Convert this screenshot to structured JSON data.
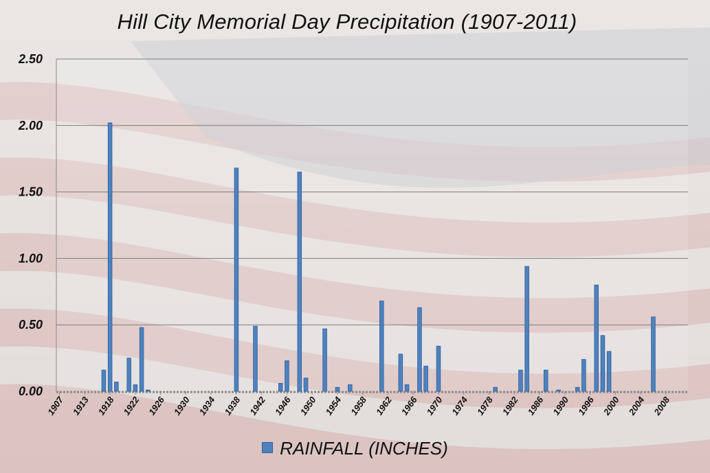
{
  "chart_data": {
    "type": "bar",
    "title": "Hill City Memorial Day Precipitation (1907-2011)",
    "xlabel": "",
    "ylabel": "",
    "ylim": [
      0,
      2.5
    ],
    "yticks": [
      "0.00",
      "0.50",
      "1.00",
      "1.50",
      "2.00",
      "2.50"
    ],
    "xtick_labels": [
      "1907",
      "1913",
      "1918",
      "1922",
      "1926",
      "1930",
      "1934",
      "1938",
      "1942",
      "1946",
      "1950",
      "1954",
      "1958",
      "1962",
      "1966",
      "1970",
      "1974",
      "1978",
      "1982",
      "1986",
      "1990",
      "1996",
      "2000",
      "2004",
      "2008"
    ],
    "x_positions": [
      0,
      4,
      8,
      12,
      16,
      20,
      24,
      28,
      32,
      36,
      40,
      44,
      48,
      52,
      56,
      60,
      64,
      68,
      72,
      76,
      80,
      84,
      88,
      92,
      96
    ],
    "grid": true,
    "legend_position": "bottom",
    "colors": {
      "bar": "#4f81bd",
      "bar_edge": "#2c5f9e"
    },
    "series": [
      {
        "name": "RAINFALL (INCHES)",
        "points": [
          [
            7,
            0.16
          ],
          [
            8,
            2.02
          ],
          [
            9,
            0.07
          ],
          [
            11,
            0.25
          ],
          [
            12,
            0.05
          ],
          [
            13,
            0.48
          ],
          [
            14,
            0.01
          ],
          [
            28,
            1.68
          ],
          [
            31,
            0.49
          ],
          [
            35,
            0.06
          ],
          [
            36,
            0.23
          ],
          [
            38,
            1.65
          ],
          [
            39,
            0.1
          ],
          [
            42,
            0.47
          ],
          [
            44,
            0.03
          ],
          [
            46,
            0.05
          ],
          [
            51,
            0.68
          ],
          [
            54,
            0.28
          ],
          [
            55,
            0.05
          ],
          [
            57,
            0.63
          ],
          [
            58,
            0.19
          ],
          [
            60,
            0.34
          ],
          [
            69,
            0.03
          ],
          [
            73,
            0.16
          ],
          [
            74,
            0.94
          ],
          [
            77,
            0.16
          ],
          [
            79,
            0.01
          ],
          [
            82,
            0.03
          ],
          [
            83,
            0.24
          ],
          [
            85,
            0.8
          ],
          [
            86,
            0.42
          ],
          [
            87,
            0.3
          ],
          [
            94,
            0.56
          ]
        ]
      }
    ]
  }
}
